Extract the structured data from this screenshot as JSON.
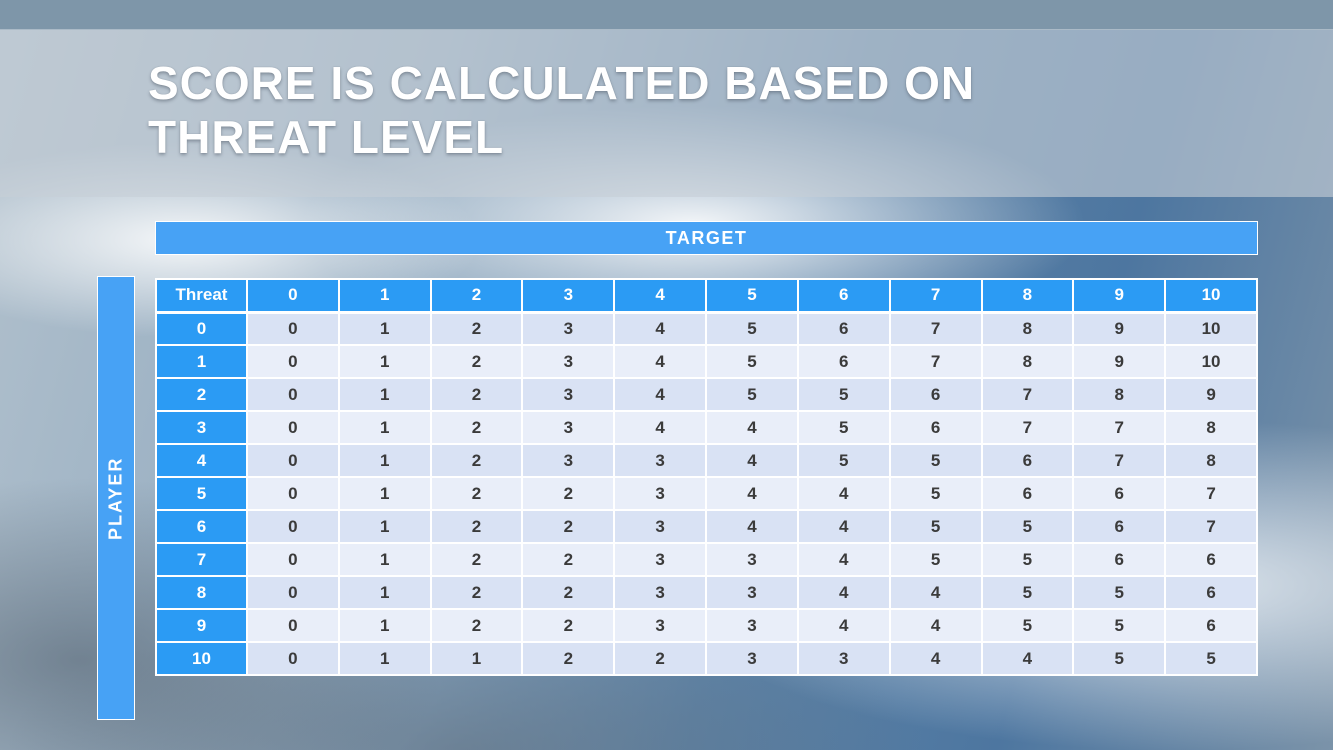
{
  "slide": {
    "title_line1": "SCORE IS CALCULATED BASED ON",
    "title_line2": "THREAT LEVEL"
  },
  "table": {
    "target_label": "TARGET",
    "player_label": "PLAYER",
    "corner_label": "Threat",
    "column_headers": [
      "0",
      "1",
      "2",
      "3",
      "4",
      "5",
      "6",
      "7",
      "8",
      "9",
      "10"
    ],
    "rows": [
      {
        "threat": "0",
        "values": [
          "0",
          "1",
          "2",
          "3",
          "4",
          "5",
          "6",
          "7",
          "8",
          "9",
          "10"
        ]
      },
      {
        "threat": "1",
        "values": [
          "0",
          "1",
          "2",
          "3",
          "4",
          "5",
          "6",
          "7",
          "8",
          "9",
          "10"
        ]
      },
      {
        "threat": "2",
        "values": [
          "0",
          "1",
          "2",
          "3",
          "4",
          "5",
          "5",
          "6",
          "7",
          "8",
          "9"
        ]
      },
      {
        "threat": "3",
        "values": [
          "0",
          "1",
          "2",
          "3",
          "4",
          "4",
          "5",
          "6",
          "7",
          "7",
          "8"
        ]
      },
      {
        "threat": "4",
        "values": [
          "0",
          "1",
          "2",
          "3",
          "3",
          "4",
          "5",
          "5",
          "6",
          "7",
          "8"
        ]
      },
      {
        "threat": "5",
        "values": [
          "0",
          "1",
          "2",
          "2",
          "3",
          "4",
          "4",
          "5",
          "6",
          "6",
          "7"
        ]
      },
      {
        "threat": "6",
        "values": [
          "0",
          "1",
          "2",
          "2",
          "3",
          "4",
          "4",
          "5",
          "5",
          "6",
          "7"
        ]
      },
      {
        "threat": "7",
        "values": [
          "0",
          "1",
          "2",
          "2",
          "3",
          "3",
          "4",
          "5",
          "5",
          "6",
          "6"
        ]
      },
      {
        "threat": "8",
        "values": [
          "0",
          "1",
          "2",
          "2",
          "3",
          "3",
          "4",
          "4",
          "5",
          "5",
          "6"
        ]
      },
      {
        "threat": "9",
        "values": [
          "0",
          "1",
          "2",
          "2",
          "3",
          "3",
          "4",
          "4",
          "5",
          "5",
          "6"
        ]
      },
      {
        "threat": "10",
        "values": [
          "0",
          "1",
          "1",
          "2",
          "2",
          "3",
          "3",
          "4",
          "4",
          "5",
          "5"
        ]
      }
    ]
  },
  "colors": {
    "top_bar": "#7E96A9",
    "title_band": "#C7CED6",
    "title_text": "#FFFFFF",
    "bar_blue": "#47A2F5",
    "header_blue": "#2B9BF4",
    "row_even": "#D9E2F4",
    "row_odd": "#E9EEF9",
    "cell_text": "#3B3B3B"
  }
}
